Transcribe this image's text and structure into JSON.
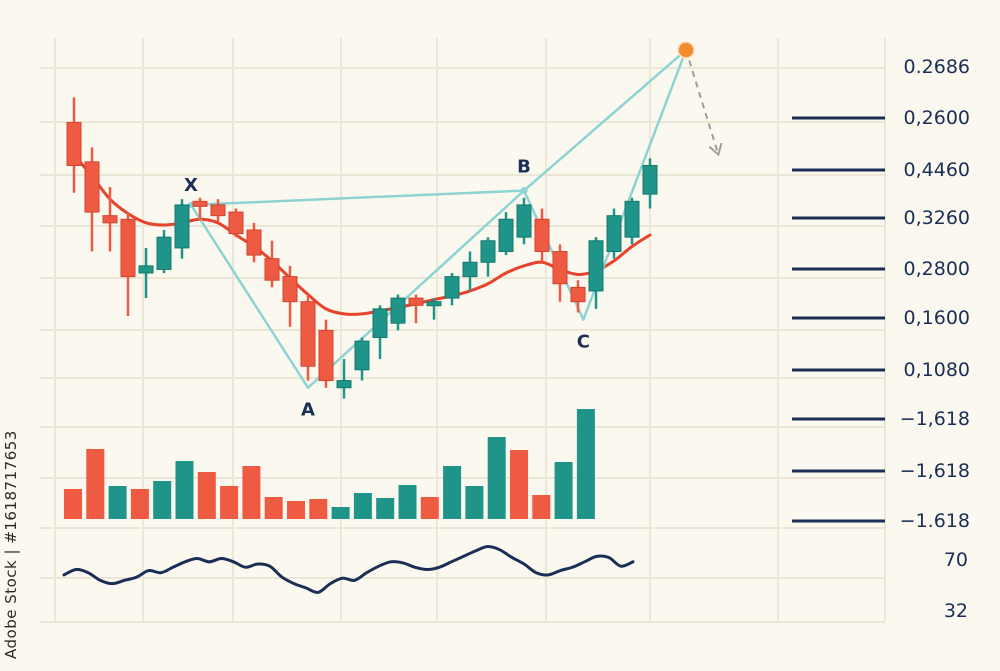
{
  "watermark": {
    "id_text": "Adobe Stock | #1618717653"
  },
  "colors": {
    "background": "#fbf9ef",
    "grid": "#ebe6d6",
    "bull": "#1f9488",
    "bear": "#ef5a43",
    "moving_average": "#e6432d",
    "pattern": "#8dd3d3",
    "oscillator": "#1b2e55",
    "level_line": "#1b2e55",
    "target_point": "#f28c2c",
    "projection": "#9e9e9e",
    "label": "#1b2e55"
  },
  "chart_data": [
    {
      "type": "candlestick",
      "panel": "price",
      "title": "",
      "xlabel": "",
      "ylabel": "",
      "grid": true,
      "candles": [
        {
          "open": 0.2585,
          "high": 0.262,
          "low": 0.2487,
          "close": 0.2525
        },
        {
          "open": 0.253,
          "high": 0.255,
          "low": 0.2405,
          "close": 0.246
        },
        {
          "open": 0.2455,
          "high": 0.2495,
          "low": 0.2405,
          "close": 0.2445
        },
        {
          "open": 0.245,
          "high": 0.246,
          "low": 0.2315,
          "close": 0.237
        },
        {
          "open": 0.2375,
          "high": 0.241,
          "low": 0.234,
          "close": 0.2385
        },
        {
          "open": 0.238,
          "high": 0.2435,
          "low": 0.2375,
          "close": 0.2425
        },
        {
          "open": 0.241,
          "high": 0.2478,
          "low": 0.2395,
          "close": 0.247
        },
        {
          "open": 0.2475,
          "high": 0.248,
          "low": 0.2448,
          "close": 0.2468
        },
        {
          "open": 0.247,
          "high": 0.2478,
          "low": 0.2447,
          "close": 0.2455
        },
        {
          "open": 0.246,
          "high": 0.2465,
          "low": 0.2425,
          "close": 0.243
        },
        {
          "open": 0.2435,
          "high": 0.2445,
          "low": 0.239,
          "close": 0.24
        },
        {
          "open": 0.2395,
          "high": 0.242,
          "low": 0.2355,
          "close": 0.2365
        },
        {
          "open": 0.237,
          "high": 0.2385,
          "low": 0.23,
          "close": 0.2335
        },
        {
          "open": 0.2335,
          "high": 0.2345,
          "low": 0.2225,
          "close": 0.2245
        },
        {
          "open": 0.2295,
          "high": 0.231,
          "low": 0.2215,
          "close": 0.2225
        },
        {
          "open": 0.2215,
          "high": 0.2255,
          "low": 0.22,
          "close": 0.2225
        },
        {
          "open": 0.224,
          "high": 0.2285,
          "low": 0.2225,
          "close": 0.228
        },
        {
          "open": 0.2285,
          "high": 0.233,
          "low": 0.2255,
          "close": 0.2325
        },
        {
          "open": 0.2305,
          "high": 0.2345,
          "low": 0.2295,
          "close": 0.234
        },
        {
          "open": 0.234,
          "high": 0.2345,
          "low": 0.2305,
          "close": 0.233
        },
        {
          "open": 0.2335,
          "high": 0.234,
          "low": 0.231,
          "close": 0.2335
        },
        {
          "open": 0.234,
          "high": 0.2375,
          "low": 0.233,
          "close": 0.237
        },
        {
          "open": 0.237,
          "high": 0.2405,
          "low": 0.235,
          "close": 0.239
        },
        {
          "open": 0.239,
          "high": 0.2425,
          "low": 0.237,
          "close": 0.242
        },
        {
          "open": 0.2405,
          "high": 0.246,
          "low": 0.24,
          "close": 0.245
        },
        {
          "open": 0.2425,
          "high": 0.248,
          "low": 0.2415,
          "close": 0.247
        },
        {
          "open": 0.245,
          "high": 0.2465,
          "low": 0.239,
          "close": 0.2405
        },
        {
          "open": 0.2405,
          "high": 0.2415,
          "low": 0.2335,
          "close": 0.236
        },
        {
          "open": 0.2355,
          "high": 0.2365,
          "low": 0.232,
          "close": 0.2335
        },
        {
          "open": 0.235,
          "high": 0.2425,
          "low": 0.2325,
          "close": 0.242
        },
        {
          "open": 0.2405,
          "high": 0.2465,
          "low": 0.2395,
          "close": 0.2455
        },
        {
          "open": 0.2425,
          "high": 0.248,
          "low": 0.2415,
          "close": 0.2475
        },
        {
          "open": 0.2485,
          "high": 0.2535,
          "low": 0.2465,
          "close": 0.2525
        }
      ],
      "moving_average": [
        0.254,
        0.251,
        0.2478,
        0.2458,
        0.2445,
        0.2442,
        0.2445,
        0.245,
        0.2445,
        0.2428,
        0.2412,
        0.2392,
        0.2368,
        0.2345,
        0.2325,
        0.2318,
        0.2318,
        0.2322,
        0.2327,
        0.2332,
        0.2338,
        0.2343,
        0.235,
        0.236,
        0.2375,
        0.2385,
        0.239,
        0.238,
        0.2373,
        0.2378,
        0.2392,
        0.2412,
        0.2428
      ],
      "harmonic_pattern": {
        "points": [
          {
            "label": "X",
            "index": 6.5,
            "value": 0.247
          },
          {
            "label": "A",
            "index": 13.0,
            "value": 0.2215
          },
          {
            "label": "B",
            "index": 25.0,
            "value": 0.249
          },
          {
            "label": "C",
            "index": 28.3,
            "value": 0.231
          },
          {
            "label": "",
            "index": 34.0,
            "value": 0.2686
          }
        ],
        "projection_end": {
          "index": 35.8,
          "value": 0.254
        }
      },
      "levels": [
        {
          "label": "0.2686",
          "line": false
        },
        {
          "label": "0,2600",
          "line": true
        },
        {
          "label": "0,4460",
          "line": true
        },
        {
          "label": "0,3260",
          "line": true
        },
        {
          "label": "0,2800",
          "line": true
        },
        {
          "label": "0,1600",
          "line": true
        },
        {
          "label": "0,1080",
          "line": true
        },
        {
          "label": "−1,618",
          "line": true
        },
        {
          "label": "−1,618",
          "line": true
        },
        {
          "label": "−1.618",
          "line": true
        }
      ]
    },
    {
      "type": "bar",
      "panel": "volume",
      "title": "",
      "values": [
        30,
        70,
        33,
        30,
        38,
        58,
        47,
        33,
        53,
        22,
        18,
        20,
        12,
        26,
        21,
        34,
        22,
        53,
        33,
        82,
        69,
        24,
        57,
        110
      ],
      "directions": [
        "down",
        "down",
        "up",
        "down",
        "up",
        "up",
        "down",
        "down",
        "down",
        "down",
        "down",
        "down",
        "up",
        "up",
        "up",
        "up",
        "down",
        "up",
        "up",
        "up",
        "down",
        "down",
        "up",
        "up"
      ],
      "ylim": [
        0,
        115
      ]
    },
    {
      "type": "line",
      "panel": "oscillator",
      "title": "",
      "values": [
        48,
        53,
        50,
        43,
        40,
        43,
        46,
        52,
        50,
        55,
        60,
        63,
        60,
        63,
        60,
        55,
        58,
        56,
        46,
        40,
        36,
        32,
        40,
        45,
        43,
        50,
        56,
        60,
        59,
        55,
        53,
        55,
        60,
        65,
        70,
        74,
        71,
        64,
        58,
        50,
        48,
        52,
        55,
        60,
        65,
        64,
        56,
        60
      ],
      "levels": [
        {
          "label": "70",
          "value": 70
        },
        {
          "label": "32",
          "value": 32
        }
      ]
    }
  ]
}
